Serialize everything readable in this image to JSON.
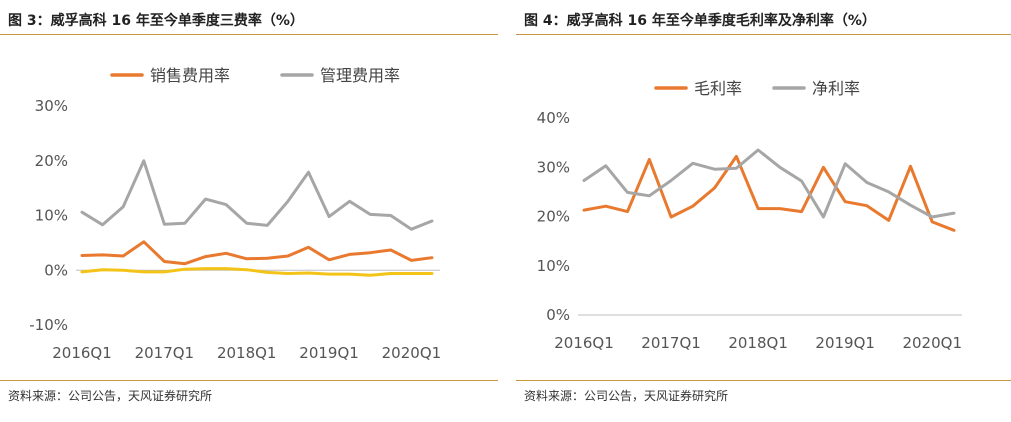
{
  "panels": [
    {
      "title": "图 3：威孚高科 16 年至今单季度三费率（%）",
      "source": "资料来源：公司公告，天风证券研究所"
    },
    {
      "title": "图 4：威孚高科 16 年至今单季度毛利率及净利率（%）",
      "source": "资料来源：公司公告，天风证券研究所"
    }
  ],
  "chart_data": [
    {
      "type": "line",
      "title": "",
      "x": [
        "2016Q1",
        "2016Q2",
        "2016Q3",
        "2016Q4",
        "2017Q1",
        "2017Q2",
        "2017Q3",
        "2017Q4",
        "2018Q1",
        "2018Q2",
        "2018Q3",
        "2018Q4",
        "2019Q1",
        "2019Q2",
        "2019Q3",
        "2019Q4",
        "2020Q1",
        "2020Q2"
      ],
      "x_tick_labels": [
        "2016Q1",
        "2017Q1",
        "2018Q1",
        "2019Q1",
        "2020Q1"
      ],
      "y_tick_labels": [
        "30%",
        "20%",
        "10%",
        "0%",
        "-10%"
      ],
      "ylim": [
        -10,
        30
      ],
      "yticks": [
        -10,
        0,
        10,
        20,
        30
      ],
      "legend_position": "top",
      "series": [
        {
          "name": "销售费用率",
          "color": "#e8792e",
          "show_in_legend": true,
          "values": [
            2.7,
            2.8,
            2.6,
            5.2,
            1.6,
            1.2,
            2.5,
            3.1,
            2.1,
            2.2,
            2.6,
            4.2,
            1.9,
            2.9,
            3.2,
            3.7,
            1.8,
            2.3
          ]
        },
        {
          "name": "管理费用率",
          "color": "#a6a6a6",
          "show_in_legend": true,
          "values": [
            10.6,
            8.3,
            11.6,
            20.0,
            8.4,
            8.6,
            13.0,
            12.0,
            8.6,
            8.2,
            12.6,
            17.9,
            9.8,
            12.6,
            10.2,
            10.0,
            7.5,
            9.0
          ]
        },
        {
          "name": "",
          "color": "#f3c417",
          "show_in_legend": false,
          "values": [
            -0.3,
            0.1,
            0.0,
            -0.3,
            -0.3,
            0.2,
            0.3,
            0.3,
            0.1,
            -0.4,
            -0.6,
            -0.5,
            -0.7,
            -0.7,
            -0.9,
            -0.6,
            -0.6,
            -0.6
          ]
        }
      ]
    },
    {
      "type": "line",
      "title": "",
      "x": [
        "2016Q1",
        "2016Q2",
        "2016Q3",
        "2016Q4",
        "2017Q1",
        "2017Q2",
        "2017Q3",
        "2017Q4",
        "2018Q1",
        "2018Q2",
        "2018Q3",
        "2018Q4",
        "2019Q1",
        "2019Q2",
        "2019Q3",
        "2019Q4",
        "2020Q1",
        "2020Q2"
      ],
      "x_tick_labels": [
        "2016Q1",
        "2017Q1",
        "2018Q1",
        "2019Q1",
        "2020Q1"
      ],
      "y_tick_labels": [
        "40%",
        "30%",
        "20%",
        "10%",
        "0%"
      ],
      "ylim": [
        0,
        40
      ],
      "yticks": [
        0,
        10,
        20,
        30,
        40
      ],
      "legend_position": "top",
      "series": [
        {
          "name": "毛利率",
          "color": "#e8792e",
          "show_in_legend": true,
          "values": [
            21.3,
            22.1,
            21.0,
            31.6,
            19.9,
            22.1,
            25.8,
            32.2,
            21.6,
            21.6,
            21.0,
            30.0,
            23.0,
            22.2,
            19.2,
            30.2,
            18.9,
            17.2
          ]
        },
        {
          "name": "净利率",
          "color": "#a6a6a6",
          "show_in_legend": true,
          "values": [
            27.3,
            30.3,
            24.9,
            24.2,
            27.3,
            30.8,
            29.6,
            29.8,
            33.5,
            30.0,
            27.2,
            19.9,
            30.7,
            26.9,
            25.0,
            22.3,
            19.9,
            20.7
          ]
        }
      ]
    }
  ]
}
